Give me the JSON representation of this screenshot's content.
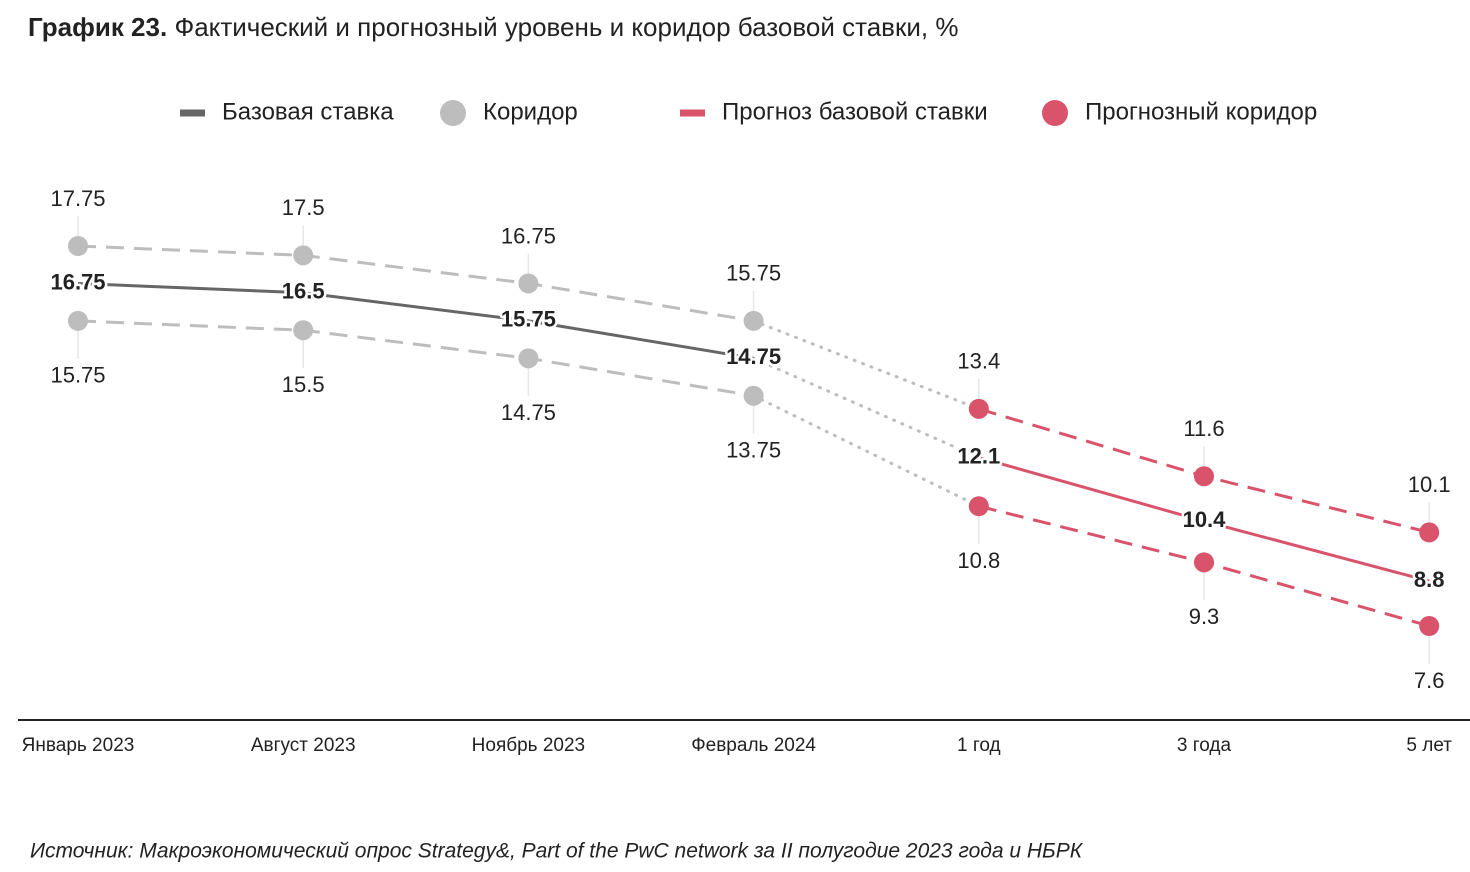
{
  "chart_data": {
    "type": "line",
    "title_prefix": "График 23.",
    "title": "Фактический и прогнозный уровень и коридор базовой ставки, %",
    "categories": [
      "Январь 2023",
      "Август 2023",
      "Ноябрь 2023",
      "Февраль 2024",
      "1 год",
      "3 года",
      "5 лет"
    ],
    "series": [
      {
        "name": "Базовая ставка",
        "color": "#666666",
        "values": [
          16.75,
          16.5,
          15.75,
          14.75,
          null,
          null,
          null
        ]
      },
      {
        "name": "Коридор",
        "color": "#bdbdbd",
        "upper": [
          17.75,
          17.5,
          16.75,
          15.75,
          null,
          null,
          null
        ],
        "lower": [
          15.75,
          15.5,
          14.75,
          13.75,
          null,
          null,
          null
        ]
      },
      {
        "name": "Прогноз базовой ставки",
        "color": "#d9536b",
        "values": [
          null,
          null,
          null,
          null,
          12.1,
          10.4,
          8.8
        ]
      },
      {
        "name": "Прогнозный коридор",
        "color": "#d9536b",
        "upper": [
          null,
          null,
          null,
          null,
          13.4,
          11.6,
          10.1
        ],
        "lower": [
          null,
          null,
          null,
          null,
          10.8,
          9.3,
          7.6
        ]
      }
    ],
    "source": "Источник: Макроэкономический опрос Strategy&, Part of the PwC network за II полугодие 2023 года и НБРК"
  }
}
